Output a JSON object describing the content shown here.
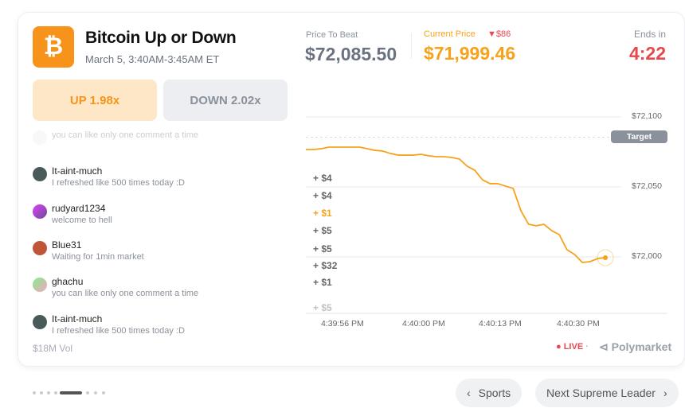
{
  "market": {
    "title": "Bitcoin Up or Down",
    "subtitle": "March 5, 3:40AM-3:45AM ET",
    "logo_glyph": "₿",
    "up_label": "UP 1.98x",
    "down_label": "DOWN 2.02x",
    "volume": "$18M Vol"
  },
  "prices": {
    "beat_label": "Price To Beat",
    "beat_value": "$72,085.50",
    "current_label": "Current Price",
    "change": "$86",
    "current_value": "$71,999.46",
    "ends_label": "Ends in",
    "ends_value": "4:22"
  },
  "comments": [
    {
      "user": "",
      "text": "you can like only one comment a time"
    },
    {
      "user": "It-aint-much",
      "text": "I refreshed like 500 times today :D"
    },
    {
      "user": "rudyard1234",
      "text": "welcome to hell"
    },
    {
      "user": "Blue31",
      "text": "Waiting for 1min market"
    },
    {
      "user": "ghachu",
      "text": "you can like only one comment a time"
    },
    {
      "user": "It-aint-much",
      "text": "I refreshed like 500 times today :D"
    }
  ],
  "tips": [
    "+ $4",
    "+ $4",
    "+ $1",
    "+ $5",
    "+ $5",
    "+ $32",
    "+ $1",
    "+ $5"
  ],
  "chart_data": {
    "type": "line",
    "target_label": "Target",
    "target": 72085.5,
    "y_ticks": [
      "$72,100",
      "$72,050",
      "$72,000"
    ],
    "y_tick_values": [
      72100,
      72050,
      72000
    ],
    "x_ticks": [
      "4:39:56 PM",
      "4:40:00 PM",
      "4:40:13 PM",
      "4:40:30 PM"
    ],
    "series": [
      {
        "name": "BTC",
        "color": "#f7a21b",
        "values": [
          72076.7,
          72076.7,
          72077.3,
          72078.4,
          72078.4,
          72078.4,
          72078.4,
          72078.4,
          72077.3,
          72076.1,
          72075.6,
          72073.9,
          72072.7,
          72072.7,
          72072.7,
          72073.3,
          72072.2,
          72071.6,
          72071.6,
          72071.0,
          72069.9,
          72064.8,
          72061.9,
          72055.1,
          72052.3,
          72052.3,
          72050.6,
          72048.9,
          72033.0,
          72023.3,
          72022.2,
          72023.3,
          72018.8,
          72015.9,
          72005.1,
          72001.7,
          71996.0,
          71996.6,
          71998.8,
          71999.46
        ]
      }
    ]
  },
  "footer": {
    "live": "LIVE",
    "brand": "Polymarket",
    "prev": "Sports",
    "next": "Next Supreme Leader"
  },
  "colors": {
    "accent": "#f7931a",
    "red": "#e5484d"
  }
}
